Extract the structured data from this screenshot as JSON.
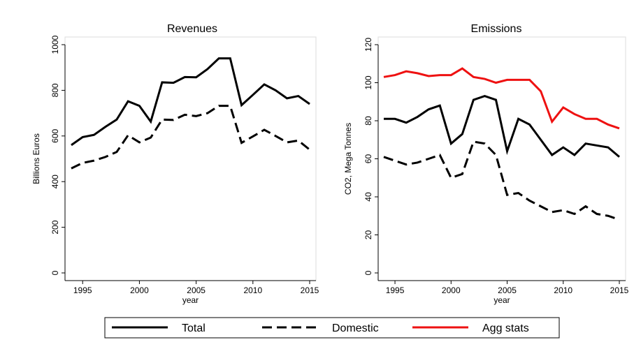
{
  "chart_data": [
    {
      "type": "line",
      "title": "Revenues",
      "xlabel": "year",
      "ylabel": "Billions Euros",
      "x": [
        1994,
        1995,
        1996,
        1997,
        1998,
        1999,
        2000,
        2001,
        2002,
        2003,
        2004,
        2005,
        2006,
        2007,
        2008,
        2009,
        2010,
        2011,
        2012,
        2013,
        2014,
        2015
      ],
      "series": [
        {
          "color": "#000000",
          "line_style": "solid",
          "values": [
            560,
            595,
            605,
            640,
            672,
            752,
            732,
            663,
            835,
            833,
            858,
            857,
            893,
            940,
            940,
            735,
            780,
            826,
            800,
            765,
            775,
            740
          ]
        },
        {
          "color": "#000000",
          "line_style": "dashed",
          "values": [
            458,
            482,
            492,
            508,
            530,
            603,
            572,
            593,
            672,
            670,
            693,
            687,
            700,
            732,
            732,
            570,
            598,
            627,
            600,
            572,
            580,
            540
          ]
        }
      ],
      "xlim": [
        1994,
        2015
      ],
      "xticks": [
        1995,
        2000,
        2005,
        2010,
        2015
      ],
      "ylim": [
        0,
        1000
      ],
      "yticks": [
        0,
        200,
        400,
        600,
        800,
        1000
      ]
    },
    {
      "type": "line",
      "title": "Emissions",
      "xlabel": "year",
      "ylabel": "CO2, Mega Tonnes",
      "x": [
        1994,
        1995,
        1996,
        1997,
        1998,
        1999,
        2000,
        2001,
        2002,
        2003,
        2004,
        2005,
        2006,
        2007,
        2008,
        2009,
        2010,
        2011,
        2012,
        2013,
        2014,
        2015
      ],
      "series": [
        {
          "name": "Total",
          "color": "#000000",
          "line_style": "solid",
          "values": [
            81,
            81,
            79,
            82,
            86,
            88,
            68,
            73,
            91,
            93,
            91,
            64,
            81,
            78,
            70,
            62,
            66,
            62,
            68,
            67,
            66,
            61
          ]
        },
        {
          "name": "Domestic",
          "color": "#000000",
          "line_style": "dashed",
          "values": [
            61,
            59,
            57,
            58,
            60,
            62,
            50,
            52,
            69,
            68,
            62,
            41,
            42,
            38,
            35,
            32,
            33,
            31,
            35,
            31,
            30,
            28
          ]
        },
        {
          "name": "Agg stats",
          "color": "#ee1111",
          "line_style": "solid",
          "values": [
            103,
            104,
            106,
            105,
            103.5,
            104,
            104,
            107.5,
            103,
            102,
            100,
            101.5,
            101.5,
            101.5,
            95.5,
            79.5,
            87,
            83.5,
            81,
            81,
            78,
            76
          ]
        }
      ],
      "xlim": [
        1994,
        2015
      ],
      "xticks": [
        1995,
        2000,
        2005,
        2010,
        2015
      ],
      "ylim": [
        0,
        120
      ],
      "yticks": [
        0,
        20,
        40,
        60,
        80,
        100,
        120
      ]
    }
  ]
}
